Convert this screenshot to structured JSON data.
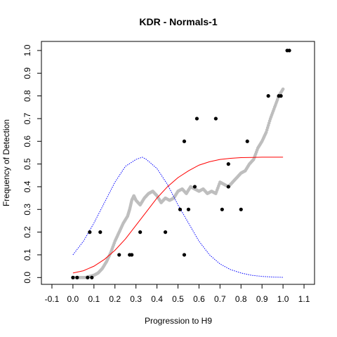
{
  "chart_data": {
    "type": "scatter",
    "title": "KDR - Normals-1",
    "xlabel": "Progression to H9",
    "ylabel": "Frequency of Detection",
    "xlim": [
      -0.15,
      1.15
    ],
    "ylim": [
      -0.03,
      1.04
    ],
    "x_ticks": [
      {
        "value": -0.1,
        "label": "-0.1"
      },
      {
        "value": 0.0,
        "label": "0.0"
      },
      {
        "value": 0.1,
        "label": "0.1"
      },
      {
        "value": 0.2,
        "label": "0.2"
      },
      {
        "value": 0.3,
        "label": "0.3"
      },
      {
        "value": 0.4,
        "label": "0.4"
      },
      {
        "value": 0.5,
        "label": "0.5"
      },
      {
        "value": 0.6,
        "label": "0.6"
      },
      {
        "value": 0.7,
        "label": "0.7"
      },
      {
        "value": 0.8,
        "label": "0.8"
      },
      {
        "value": 0.9,
        "label": "0.9"
      },
      {
        "value": 1.0,
        "label": "1.0"
      },
      {
        "value": 1.1,
        "label": "1.1"
      }
    ],
    "y_ticks": [
      {
        "value": 0.0,
        "label": "0.0"
      },
      {
        "value": 0.1,
        "label": "0.1"
      },
      {
        "value": 0.2,
        "label": "0.2"
      },
      {
        "value": 0.3,
        "label": "0.3"
      },
      {
        "value": 0.4,
        "label": "0.4"
      },
      {
        "value": 0.5,
        "label": "0.5"
      },
      {
        "value": 0.6,
        "label": "0.6"
      },
      {
        "value": 0.7,
        "label": "0.7"
      },
      {
        "value": 0.8,
        "label": "0.8"
      },
      {
        "value": 0.9,
        "label": "0.9"
      },
      {
        "value": 1.0,
        "label": "1.0"
      }
    ],
    "grid": false,
    "colors": {
      "points": "#000000",
      "moving_average": "#bebebe",
      "fitted_curve": "#ff0000",
      "density_curve": "#0000ff"
    },
    "series": [
      {
        "kind": "points",
        "x": [
          0.0,
          0.02,
          0.07,
          0.09,
          0.08,
          0.13,
          0.22,
          0.27,
          0.28,
          0.32,
          0.44,
          0.51,
          0.53,
          0.53,
          0.55,
          0.58,
          0.59,
          0.68,
          0.71,
          0.74,
          0.74,
          0.8,
          0.83,
          0.93,
          0.98,
          0.99,
          1.02,
          1.03
        ],
        "y": [
          0.0,
          0.0,
          0.0,
          0.0,
          0.2,
          0.2,
          0.1,
          0.1,
          0.1,
          0.2,
          0.2,
          0.3,
          0.6,
          0.1,
          0.3,
          0.4,
          0.7,
          0.7,
          0.3,
          0.4,
          0.5,
          0.3,
          0.6,
          0.8,
          0.8,
          0.8,
          1.0,
          1.0
        ]
      },
      {
        "kind": "moving_average",
        "x": [
          0.0,
          0.03,
          0.06,
          0.08,
          0.1,
          0.12,
          0.14,
          0.16,
          0.18,
          0.2,
          0.22,
          0.24,
          0.26,
          0.27,
          0.28,
          0.29,
          0.3,
          0.32,
          0.34,
          0.36,
          0.38,
          0.4,
          0.42,
          0.44,
          0.46,
          0.48,
          0.5,
          0.52,
          0.54,
          0.56,
          0.58,
          0.6,
          0.62,
          0.64,
          0.66,
          0.68,
          0.7,
          0.72,
          0.74,
          0.76,
          0.78,
          0.8,
          0.82,
          0.84,
          0.86,
          0.88,
          0.9,
          0.92,
          0.94,
          0.96,
          0.98,
          1.0
        ],
        "y": [
          0.0,
          0.0,
          0.0,
          0.005,
          0.01,
          0.02,
          0.04,
          0.07,
          0.11,
          0.16,
          0.2,
          0.24,
          0.27,
          0.3,
          0.34,
          0.36,
          0.34,
          0.32,
          0.35,
          0.37,
          0.38,
          0.36,
          0.33,
          0.35,
          0.34,
          0.35,
          0.38,
          0.39,
          0.37,
          0.4,
          0.39,
          0.38,
          0.39,
          0.37,
          0.38,
          0.37,
          0.42,
          0.41,
          0.4,
          0.42,
          0.44,
          0.46,
          0.47,
          0.5,
          0.52,
          0.57,
          0.6,
          0.64,
          0.7,
          0.75,
          0.8,
          0.83
        ]
      },
      {
        "kind": "fitted_curve",
        "x": [
          0.0,
          0.05,
          0.1,
          0.15,
          0.2,
          0.25,
          0.3,
          0.35,
          0.4,
          0.45,
          0.5,
          0.55,
          0.6,
          0.65,
          0.7,
          0.75,
          0.8,
          0.85,
          0.9,
          0.95,
          1.0
        ],
        "y": [
          0.02,
          0.03,
          0.05,
          0.08,
          0.12,
          0.17,
          0.23,
          0.29,
          0.35,
          0.4,
          0.44,
          0.47,
          0.495,
          0.51,
          0.52,
          0.525,
          0.528,
          0.529,
          0.53,
          0.53,
          0.53
        ]
      },
      {
        "kind": "density_curve",
        "x": [
          0.0,
          0.05,
          0.1,
          0.15,
          0.2,
          0.25,
          0.3,
          0.33,
          0.35,
          0.4,
          0.45,
          0.5,
          0.55,
          0.6,
          0.65,
          0.7,
          0.75,
          0.8,
          0.85,
          0.9,
          0.95,
          1.0
        ],
        "y": [
          0.1,
          0.16,
          0.24,
          0.33,
          0.42,
          0.49,
          0.52,
          0.53,
          0.52,
          0.48,
          0.41,
          0.32,
          0.24,
          0.16,
          0.1,
          0.06,
          0.035,
          0.02,
          0.01,
          0.005,
          0.002,
          0.001
        ]
      }
    ]
  }
}
